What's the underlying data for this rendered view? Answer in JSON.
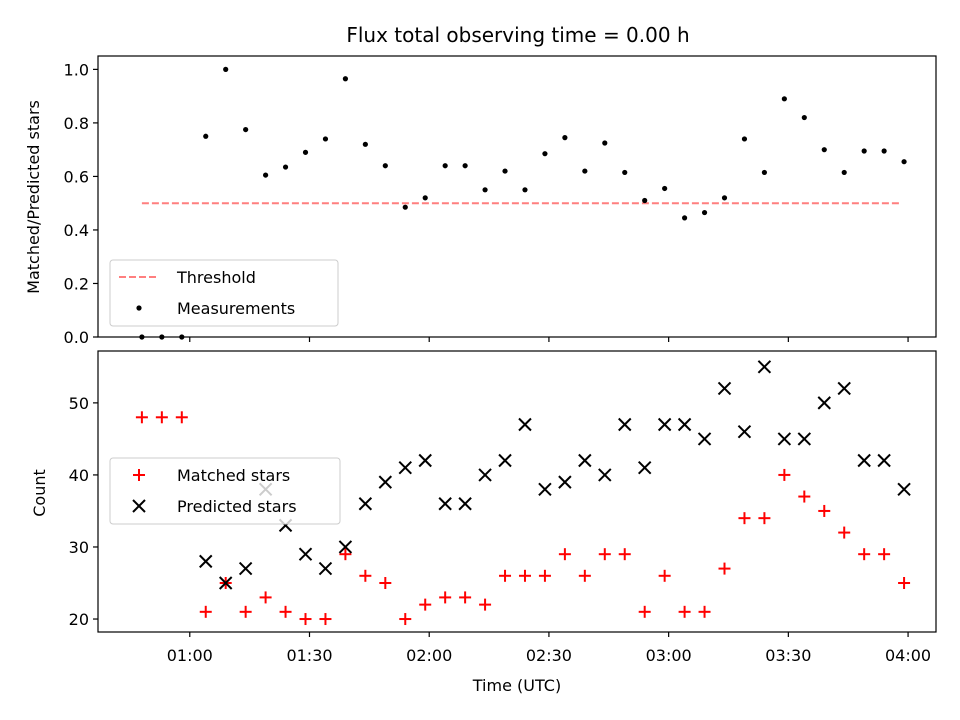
{
  "chart_data": [
    {
      "type": "scatter",
      "title": "Flux total observing time = 0.00 h",
      "xlabel": "",
      "ylabel": "Matched/Predicted stars",
      "xlim_minutes": [
        37,
        247
      ],
      "ylim": [
        0,
        1.05
      ],
      "yticks": [
        "0.0",
        "0.2",
        "0.4",
        "0.6",
        "0.8",
        "1.0"
      ],
      "yticks_values": [
        0,
        0.2,
        0.4,
        0.6,
        0.8,
        1.0
      ],
      "threshold": {
        "name": "Threshold",
        "value": 0.5,
        "x_start_minutes": 48,
        "x_end_minutes": 238,
        "color": "#ff7f7f"
      },
      "measurements": {
        "name": "Measurements",
        "color": "#000000",
        "x_minutes": [
          48,
          53,
          58,
          64,
          69,
          74,
          79,
          84,
          89,
          94,
          99,
          104,
          109,
          114,
          119,
          124,
          129,
          134,
          139,
          144,
          149,
          154,
          159,
          164,
          169,
          174,
          179,
          184,
          189,
          194,
          199,
          204,
          209,
          214,
          219,
          224,
          229,
          234,
          239
        ],
        "values": [
          0.0,
          0.0,
          0.0,
          0.75,
          1.0,
          0.775,
          0.605,
          0.635,
          0.69,
          0.74,
          0.965,
          0.72,
          0.64,
          0.485,
          0.52,
          0.64,
          0.64,
          0.55,
          0.62,
          0.55,
          0.685,
          0.745,
          0.62,
          0.725,
          0.615,
          0.51,
          0.555,
          0.445,
          0.465,
          0.52,
          0.74,
          0.615,
          0.89,
          0.82,
          0.7,
          0.615,
          0.695,
          0.695,
          0.655
        ]
      },
      "legend": {
        "placement": "lower-left",
        "entries": [
          "Threshold",
          "Measurements"
        ]
      }
    },
    {
      "type": "scatter",
      "title": "",
      "xlabel": "Time (UTC)",
      "ylabel": "Count",
      "xlim_minutes": [
        37,
        247
      ],
      "ylim": [
        18.2,
        57.2
      ],
      "yticks": [
        "20",
        "30",
        "40",
        "50"
      ],
      "yticks_values": [
        20,
        30,
        40,
        50
      ],
      "xticks": [
        "01:00",
        "01:30",
        "02:00",
        "02:30",
        "03:00",
        "03:30",
        "04:00"
      ],
      "xticks_minutes": [
        60,
        90,
        120,
        150,
        180,
        210,
        240
      ],
      "series": [
        {
          "name": "Matched stars",
          "marker": "plus",
          "color": "#ff0000",
          "x_minutes": [
            48,
            53,
            58,
            64,
            69,
            74,
            79,
            84,
            89,
            94,
            99,
            104,
            109,
            114,
            119,
            124,
            129,
            134,
            139,
            144,
            149,
            154,
            159,
            164,
            169,
            174,
            179,
            184,
            189,
            194,
            199,
            204,
            209,
            214,
            219,
            224,
            229,
            234,
            239
          ],
          "values": [
            48,
            48,
            48,
            21,
            25,
            21,
            23,
            21,
            20,
            20,
            29,
            26,
            25,
            20,
            22,
            23,
            23,
            22,
            26,
            26,
            26,
            29,
            26,
            29,
            29,
            21,
            26,
            21,
            21,
            27,
            34,
            34,
            40,
            37,
            35,
            32,
            29,
            29,
            25
          ]
        },
        {
          "name": "Predicted stars",
          "marker": "x",
          "color": "#000000",
          "x_minutes": [
            64,
            69,
            74,
            79,
            84,
            89,
            94,
            99,
            104,
            109,
            114,
            119,
            124,
            129,
            134,
            139,
            144,
            149,
            154,
            159,
            164,
            169,
            174,
            179,
            184,
            189,
            194,
            199,
            204,
            209,
            214,
            219,
            224,
            229,
            234,
            239
          ],
          "values": [
            28,
            25,
            27,
            38,
            33,
            29,
            27,
            30,
            36,
            39,
            41,
            42,
            36,
            36,
            40,
            42,
            47,
            38,
            39,
            42,
            40,
            47,
            41,
            47,
            47,
            45,
            52,
            46,
            55,
            45,
            45,
            50,
            52,
            42,
            42,
            38
          ]
        }
      ],
      "legend": {
        "placement": "center-left",
        "entries": [
          "Matched stars",
          "Predicted stars"
        ]
      }
    }
  ]
}
